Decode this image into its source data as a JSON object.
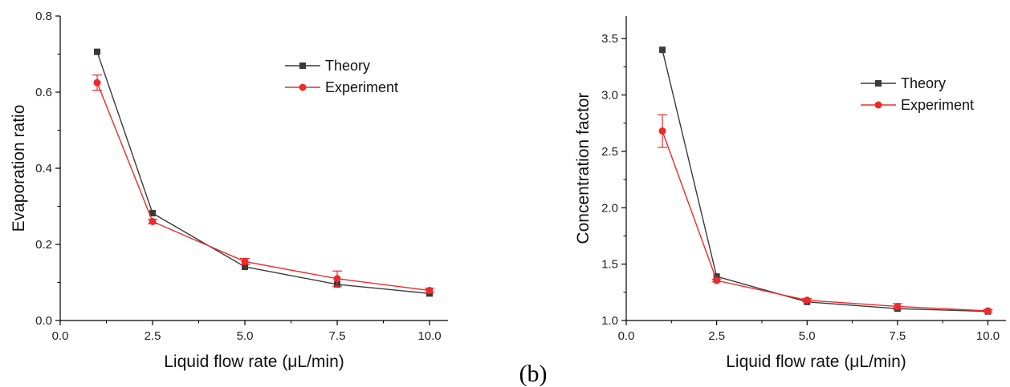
{
  "colors": {
    "theory": "#3a3a3a",
    "experiment": "#ee2a2a",
    "axis": "#000000"
  },
  "panel_label": "(b)",
  "chart_data": [
    {
      "type": "line",
      "xlabel": "Liquid flow rate (μL/min)",
      "ylabel": "Evaporation ratio",
      "xlim": [
        0,
        10.5
      ],
      "ylim": [
        0,
        0.8
      ],
      "xticks": [
        0.0,
        2.5,
        5.0,
        7.5,
        10.0
      ],
      "xtick_labels": [
        "0.0",
        "2.5",
        "5.0",
        "7.5",
        "10.0"
      ],
      "yticks": [
        0.0,
        0.2,
        0.4,
        0.6,
        0.8
      ],
      "ytick_labels": [
        "0.0",
        "0.2",
        "0.4",
        "0.6",
        "0.8"
      ],
      "legend_position": "top-right",
      "series": [
        {
          "name": "Theory",
          "marker": "square",
          "x": [
            1,
            2.5,
            5,
            7.5,
            10
          ],
          "y": [
            0.706,
            0.282,
            0.141,
            0.095,
            0.071
          ]
        },
        {
          "name": "Experiment",
          "marker": "circle",
          "x": [
            1,
            2.5,
            5,
            7.5,
            10
          ],
          "y": [
            0.625,
            0.26,
            0.155,
            0.11,
            0.079
          ],
          "error": [
            0.02,
            0.006,
            0.008,
            0.02,
            0.006
          ]
        }
      ]
    },
    {
      "type": "line",
      "xlabel": "Liquid flow rate (μL/min)",
      "ylabel": "Concentration factor",
      "xlim": [
        0,
        10.5
      ],
      "ylim": [
        1.0,
        3.7
      ],
      "xticks": [
        0.0,
        2.5,
        5.0,
        7.5,
        10.0
      ],
      "xtick_labels": [
        "0.0",
        "2.5",
        "5.0",
        "7.5",
        "10.0"
      ],
      "yticks": [
        1.0,
        1.5,
        2.0,
        2.5,
        3.0,
        3.5
      ],
      "ytick_labels": [
        "1.0",
        "1.5",
        "2.0",
        "2.5",
        "3.0",
        "3.5"
      ],
      "legend_position": "top-right",
      "series": [
        {
          "name": "Theory",
          "marker": "square",
          "x": [
            1,
            2.5,
            5,
            7.5,
            10
          ],
          "y": [
            3.4,
            1.39,
            1.165,
            1.105,
            1.08
          ]
        },
        {
          "name": "Experiment",
          "marker": "circle",
          "x": [
            1,
            2.5,
            5,
            7.5,
            10
          ],
          "y": [
            2.68,
            1.355,
            1.18,
            1.125,
            1.085
          ],
          "error": [
            0.145,
            0.012,
            0.015,
            0.025,
            0.01
          ]
        }
      ]
    }
  ]
}
